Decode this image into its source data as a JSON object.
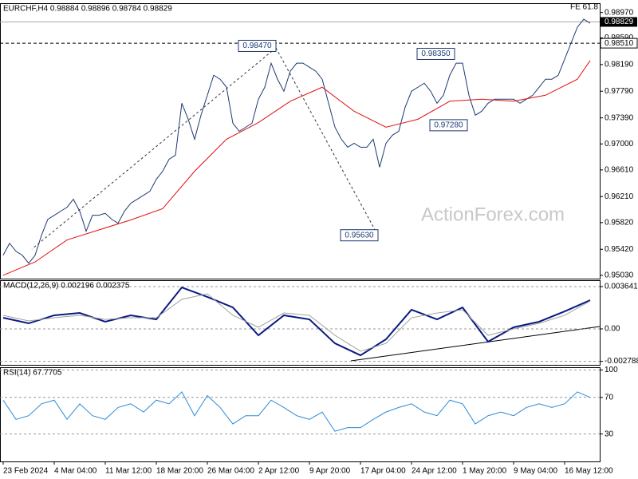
{
  "chart_data": [
    {
      "type": "line",
      "title": "EURCHF,H4 0.98884 0.98896 0.98784 0.98829",
      "watermark": "ActionForex.com",
      "fe_label": "FE 61.8",
      "categories": [
        "23 Feb 2024",
        null,
        null,
        null,
        null,
        null,
        null,
        null,
        "4 Mar 04:00",
        null,
        null,
        null,
        null,
        null,
        null,
        null,
        "11 Mar 12:00",
        null,
        null,
        null,
        null,
        null,
        null,
        null,
        "18 Mar 20:00",
        null,
        null,
        null,
        null,
        null,
        null,
        null,
        "26 Mar 04:00",
        null,
        null,
        null,
        null,
        null,
        null,
        null,
        "2 Apr 12:00",
        null,
        null,
        null,
        null,
        null,
        null,
        null,
        "9 Apr 20:00",
        null,
        null,
        null,
        null,
        null,
        null,
        null,
        "17 Apr 04:00",
        null,
        null,
        null,
        null,
        null,
        null,
        null,
        "24 Apr 12:00",
        null,
        null,
        null,
        null,
        null,
        null,
        null,
        "1 May 20:00",
        null,
        null,
        null,
        null,
        null,
        null,
        null,
        "9 May 04:00",
        null,
        null,
        null,
        null,
        null,
        null,
        null,
        "16 May 12:00",
        null,
        null,
        null,
        null
      ],
      "series": [
        {
          "color": "#1c3a70",
          "values": [
            0.9533,
            0.9551,
            0.9539,
            0.9533,
            0.9521,
            0.9533,
            0.9563,
            0.9587,
            0.9593,
            0.9599,
            0.9605,
            0.9617,
            0.9599,
            0.9569,
            0.9593,
            0.9593,
            0.9596,
            0.9587,
            0.9581,
            0.9599,
            0.9611,
            0.9617,
            0.9623,
            0.9629,
            0.9647,
            0.9659,
            0.9677,
            0.9683,
            0.9761,
            0.9737,
            0.9707,
            0.9743,
            0.9773,
            0.9803,
            0.9797,
            0.9785,
            0.9731,
            0.9719,
            0.9725,
            0.9731,
            0.9767,
            0.9785,
            0.9821,
            0.9797,
            0.9779,
            0.9809,
            0.9821,
            0.9821,
            0.9815,
            0.9809,
            0.9797,
            0.9761,
            0.9725,
            0.9707,
            0.9695,
            0.9701,
            0.9695,
            0.9695,
            0.9707,
            0.9665,
            0.9701,
            0.9713,
            0.9719,
            0.9755,
            0.9779,
            0.9785,
            0.9791,
            0.9779,
            0.9761,
            0.9773,
            0.9803,
            0.9821,
            0.9821,
            0.9773,
            0.9743,
            0.9749,
            0.9761,
            0.9767,
            0.9767,
            0.9767,
            0.9767,
            0.9761,
            0.9767,
            0.9773,
            0.9785,
            0.9797,
            0.9797,
            0.9803,
            0.9827,
            0.9851,
            0.9875,
            0.9887,
            0.9881
          ]
        },
        {
          "color": "#e01010",
          "x": [
            0,
            5,
            10,
            15,
            20,
            25,
            30,
            35,
            40,
            45,
            50,
            55,
            60,
            65,
            70,
            75,
            80,
            85,
            90,
            92
          ],
          "values": [
            0.9503,
            0.9523,
            0.9556,
            0.9571,
            0.9586,
            0.9603,
            0.9659,
            0.9707,
            0.9732,
            0.9764,
            0.9785,
            0.9749,
            0.9725,
            0.9737,
            0.9764,
            0.9767,
            0.9764,
            0.9773,
            0.9797,
            0.9825
          ]
        }
      ],
      "annotations": [
        {
          "label": "0.98470",
          "value": 0.9847,
          "x": 43
        },
        {
          "label": "0.98350",
          "value": 0.9835,
          "x": 71
        },
        {
          "label": "0.97280",
          "value": 0.9728,
          "x": 73
        },
        {
          "label": "0.95630",
          "value": 0.9563,
          "x": 59
        }
      ],
      "last_price": {
        "value": 0.98829,
        "label": "0.98829"
      },
      "level": {
        "value": 0.9851,
        "label": "0.98510"
      },
      "ylim": [
        0.9498,
        0.9911
      ],
      "yticks": [
        {
          "value": 0.9897,
          "label": "0.98970"
        },
        {
          "value": 0.9859,
          "label": "0.98590"
        },
        {
          "value": 0.9819,
          "label": "0.98190"
        },
        {
          "value": 0.9779,
          "label": "0.97790"
        },
        {
          "value": 0.9739,
          "label": "0.97390"
        },
        {
          "value": 0.97,
          "label": "0.97000"
        },
        {
          "value": 0.9661,
          "label": "0.96610"
        },
        {
          "value": 0.9621,
          "label": "0.96210"
        },
        {
          "value": 0.9582,
          "label": "0.95820"
        },
        {
          "value": 0.9542,
          "label": "0.95420"
        },
        {
          "value": 0.9503,
          "label": "0.95030"
        }
      ],
      "grid": false
    },
    {
      "type": "line",
      "title": "MACD(12,26,9) 0.002196 0.002375",
      "series": [
        {
          "color": "#0a1a80",
          "x": [
            0,
            4,
            8,
            12,
            16,
            20,
            24,
            28,
            32,
            36,
            40,
            44,
            48,
            52,
            56,
            60,
            64,
            68,
            72,
            76,
            80,
            84,
            88,
            92
          ],
          "values": [
            0.00096,
            0.00048,
            0.00117,
            0.00137,
            0.00062,
            0.00117,
            0.00082,
            0.00357,
            0.00275,
            0.00185,
            -0.00055,
            0.00117,
            0.00082,
            -0.00124,
            -0.00227,
            -0.00089,
            0.00165,
            0.00082,
            0.00185,
            -0.0011,
            0.00014,
            0.00062,
            0.00151,
            0.00247
          ]
        },
        {
          "color": "#a0a0a0",
          "x": [
            0,
            4,
            8,
            12,
            16,
            20,
            24,
            28,
            32,
            36,
            40,
            44,
            48,
            52,
            56,
            60,
            64,
            68,
            72,
            76,
            80,
            84,
            88,
            92
          ],
          "values": [
            0.00117,
            0.00069,
            0.00096,
            0.00117,
            0.00082,
            0.00096,
            0.00096,
            0.00254,
            0.00302,
            0.00117,
            0.00014,
            0.00137,
            0.00117,
            -0.00055,
            -0.00192,
            -0.00124,
            0.00096,
            0.00137,
            0.00165,
            -0.00055,
            0.0,
            0.00048,
            0.00117,
            0.0024
          ]
        }
      ],
      "ylim": [
        -0.00309,
        0.00419
      ],
      "yticks": [
        0.003641,
        {
          "value": 0,
          "label": "0.00"
        },
        -0.002788
      ],
      "grid": true
    },
    {
      "type": "line",
      "title": "RSI(14) 67.7705",
      "series": [
        {
          "color": "#2a8ad8",
          "x": [
            0,
            2,
            4,
            6,
            8,
            10,
            12,
            14,
            16,
            18,
            20,
            22,
            24,
            26,
            28,
            30,
            32,
            34,
            36,
            38,
            40,
            42,
            44,
            46,
            48,
            50,
            52,
            54,
            56,
            58,
            60,
            62,
            64,
            66,
            68,
            70,
            72,
            74,
            76,
            78,
            80,
            82,
            84,
            86,
            88,
            90,
            92
          ],
          "values": [
            67,
            46,
            50,
            63,
            67,
            46,
            63,
            50,
            46,
            59,
            63,
            54,
            67,
            63,
            76,
            50,
            72,
            59,
            41,
            50,
            50,
            67,
            59,
            50,
            46,
            54,
            33,
            37,
            37,
            46,
            54,
            59,
            63,
            54,
            50,
            67,
            63,
            41,
            50,
            54,
            50,
            59,
            63,
            59,
            63,
            76,
            70
          ]
        }
      ],
      "ylim": [
        0,
        103
      ],
      "yticks": [
        100,
        70,
        30
      ],
      "grid": true
    }
  ]
}
